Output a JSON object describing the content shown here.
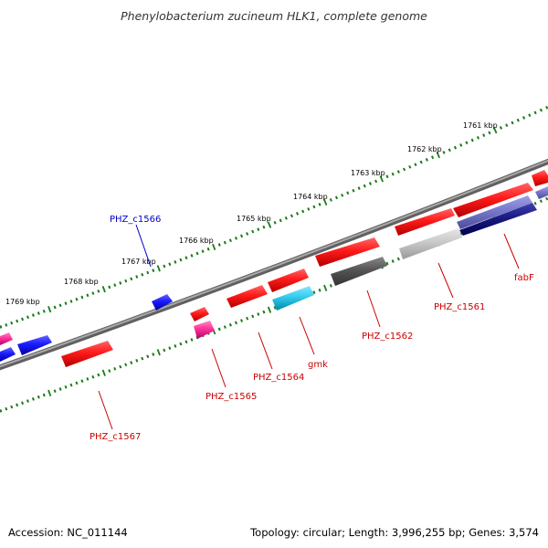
{
  "title": "Phenylobacterium zucineum HLK1, complete genome",
  "footer": {
    "accession": "Accession: NC_011144",
    "summary": "Topology: circular; Length: 3,996,255 bp; Genes: 3,574"
  },
  "ruler": {
    "ticks": [
      "1761 kbp",
      "1762 kbp",
      "1763 kbp",
      "1764 kbp",
      "1765 kbp",
      "1766 kbp",
      "1767 kbp",
      "1768 kbp",
      "1769 kbp"
    ]
  },
  "gene_labels": [
    {
      "name": "PHZ_c1566",
      "color": "#0000cc"
    },
    {
      "name": "PHZ_c1567",
      "color": "#cc0000"
    },
    {
      "name": "PHZ_c1565",
      "color": "#cc0000"
    },
    {
      "name": "PHZ_c1564",
      "color": "#cc0000"
    },
    {
      "name": "gmk",
      "color": "#cc0000"
    },
    {
      "name": "PHZ_c1562",
      "color": "#cc0000"
    },
    {
      "name": "PHZ_c1561",
      "color": "#cc0000"
    },
    {
      "name": "fabF",
      "color": "#cc0000"
    }
  ],
  "colors": {
    "backbone": "#808080",
    "ruler_dots": "#1a7a1a",
    "gene_red": "#ff1a1a",
    "gene_blue": "#1a1aff",
    "gene_pink": "#ff3399",
    "gene_cyan": "#33ccee",
    "gene_gray_dark": "#555555",
    "gene_gray_light": "#c8c8c8",
    "gene_lavender": "#7777cc",
    "gene_navy": "#1a1a80"
  }
}
